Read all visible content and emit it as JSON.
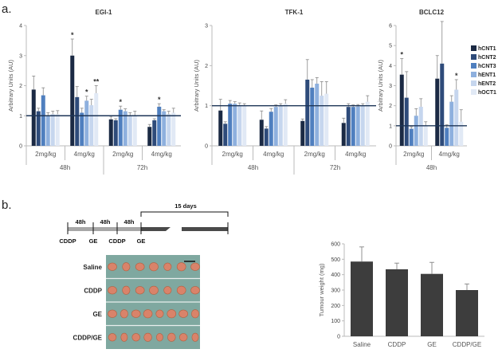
{
  "panel_a_label": "a.",
  "panel_b_label": "b.",
  "colors": {
    "series": [
      "#1b2a44",
      "#2e4b7a",
      "#4f7fbf",
      "#8eb0de",
      "#c6d6ee",
      "#e1e9f5"
    ],
    "bar_b": "#3d3d3d",
    "axis": "#bbbbbb",
    "refline": "#1d3557",
    "tissue_bg": "#7fa8a0",
    "tumour": "#d9836a"
  },
  "series_names": [
    "hCNT1",
    "hCNT2",
    "hCNT3",
    "hENT1",
    "hENT2",
    "hOCT1"
  ],
  "chart_data": [
    {
      "type": "bar",
      "title": "EGI-1",
      "ylabel": "Arbitrary Units (AU)",
      "ylim": [
        0,
        4
      ],
      "yticks": [
        "0",
        "1",
        "2",
        "3",
        "4"
      ],
      "reference_line": 1,
      "categories": [
        "2mg/kg",
        "4mg/kg",
        "2mg/kg",
        "4mg/kg"
      ],
      "groups": [
        {
          "label": "48h",
          "span": [
            0,
            1
          ]
        },
        {
          "label": "72h",
          "span": [
            2,
            3
          ]
        }
      ],
      "series": [
        {
          "name": "hCNT1",
          "values": [
            1.87,
            3.0,
            0.88,
            0.63
          ],
          "errors": [
            0.45,
            0.55,
            0.1,
            0.08
          ]
        },
        {
          "name": "hCNT2",
          "values": [
            1.15,
            1.62,
            0.85,
            0.85
          ],
          "errors": [
            0.1,
            0.35,
            0.05,
            0.05
          ]
        },
        {
          "name": "hCNT3",
          "values": [
            1.68,
            1.1,
            1.2,
            1.3
          ],
          "errors": [
            0.25,
            0.15,
            0.12,
            0.1
          ]
        },
        {
          "name": "hENT1",
          "values": [
            1.0,
            1.5,
            1.15,
            1.15
          ],
          "errors": [
            0.1,
            0.15,
            0.08,
            0.05
          ]
        },
        {
          "name": "hENT2",
          "values": [
            1.05,
            1.35,
            1.0,
            1.05
          ],
          "errors": [
            0.1,
            0.2,
            0.1,
            0.1
          ]
        },
        {
          "name": "hOCT1",
          "values": [
            1.05,
            1.75,
            1.0,
            1.1
          ],
          "errors": [
            0.12,
            0.25,
            0.15,
            0.15
          ]
        }
      ],
      "significance": [
        {
          "category": 1,
          "series": 0,
          "label": "*"
        },
        {
          "category": 1,
          "series": 3,
          "label": "*"
        },
        {
          "category": 1,
          "series": 5,
          "label": "**"
        },
        {
          "category": 2,
          "series": 2,
          "label": "*"
        },
        {
          "category": 3,
          "series": 2,
          "label": "*"
        }
      ]
    },
    {
      "type": "bar",
      "title": "TFK-1",
      "ylabel": "Arbitrary Units (AU)",
      "ylim": [
        0,
        3
      ],
      "yticks": [
        "0",
        "1",
        "2",
        "3"
      ],
      "reference_line": 1,
      "categories": [
        "2mg/kg",
        "4mg/kg",
        "2mg/kg",
        "4mg/kg"
      ],
      "groups": [
        {
          "label": "48h",
          "span": [
            0,
            1
          ]
        },
        {
          "label": "72h",
          "span": [
            2,
            3
          ]
        }
      ],
      "series": [
        {
          "name": "hCNT1",
          "values": [
            0.88,
            0.65,
            0.62,
            0.57
          ],
          "errors": [
            0.28,
            0.22,
            0.05,
            0.12
          ]
        },
        {
          "name": "hCNT2",
          "values": [
            0.55,
            0.43,
            1.65,
            0.97
          ],
          "errors": [
            0.05,
            0.05,
            0.5,
            0.08
          ]
        },
        {
          "name": "hCNT3",
          "values": [
            1.05,
            0.85,
            1.45,
            0.97
          ],
          "errors": [
            0.08,
            0.08,
            0.2,
            0.05
          ]
        },
        {
          "name": "hENT1",
          "values": [
            1.05,
            0.97,
            1.55,
            0.98
          ],
          "errors": [
            0.05,
            0.05,
            0.15,
            0.05
          ]
        },
        {
          "name": "hENT2",
          "values": [
            1.02,
            1.0,
            1.25,
            1.0
          ],
          "errors": [
            0.05,
            0.05,
            0.35,
            0.05
          ]
        },
        {
          "name": "hOCT1",
          "values": [
            1.0,
            1.05,
            1.3,
            1.1
          ],
          "errors": [
            0.05,
            0.1,
            0.3,
            0.15
          ]
        }
      ],
      "significance": []
    },
    {
      "type": "bar",
      "title": "BCLC12",
      "ylabel": "Arbitrary Units (AU)",
      "ylim": [
        0,
        6
      ],
      "yticks": [
        "0",
        "1",
        "2",
        "3",
        "4",
        "5",
        "6"
      ],
      "reference_line": 1,
      "categories": [
        "2mg/kg",
        "4mg/kg"
      ],
      "groups": [
        {
          "label": "48h",
          "span": [
            0,
            1
          ]
        }
      ],
      "series": [
        {
          "name": "hCNT1",
          "values": [
            3.55,
            3.35
          ],
          "errors": [
            0.8,
            1.15
          ]
        },
        {
          "name": "hCNT2",
          "values": [
            2.4,
            4.1
          ],
          "errors": [
            1.3,
            2.1
          ]
        },
        {
          "name": "hCNT3",
          "values": [
            0.85,
            0.9
          ],
          "errors": [
            0.1,
            0.15
          ]
        },
        {
          "name": "hENT1",
          "values": [
            1.5,
            2.2
          ],
          "errors": [
            0.35,
            0.3
          ]
        },
        {
          "name": "hENT2",
          "values": [
            1.95,
            2.8
          ],
          "errors": [
            0.4,
            0.5
          ]
        },
        {
          "name": "hOCT1",
          "values": [
            1.0,
            1.2
          ],
          "errors": [
            0.2,
            0.6
          ]
        }
      ],
      "significance": [
        {
          "category": 0,
          "series": 0,
          "label": "*"
        },
        {
          "category": 1,
          "series": 4,
          "label": "*"
        }
      ]
    },
    {
      "type": "bar",
      "title": "",
      "ylabel": "Tumour weight (mg)",
      "ylim": [
        0,
        600
      ],
      "yticks": [
        "0",
        "100",
        "200",
        "300",
        "400",
        "500",
        "600"
      ],
      "categories": [
        "Saline",
        "CDDP",
        "GE",
        "CDDP/GE"
      ],
      "values": [
        485,
        435,
        405,
        300
      ],
      "errors": [
        95,
        40,
        75,
        40
      ]
    }
  ],
  "timeline": {
    "intervals": [
      "48h",
      "48h",
      "48h"
    ],
    "period_label": "15 days",
    "events": [
      "CDDP",
      "GE",
      "CDDP",
      "GE"
    ]
  },
  "tumour_groups": [
    "Saline",
    "CDDP",
    "GE",
    "CDDP/GE"
  ]
}
